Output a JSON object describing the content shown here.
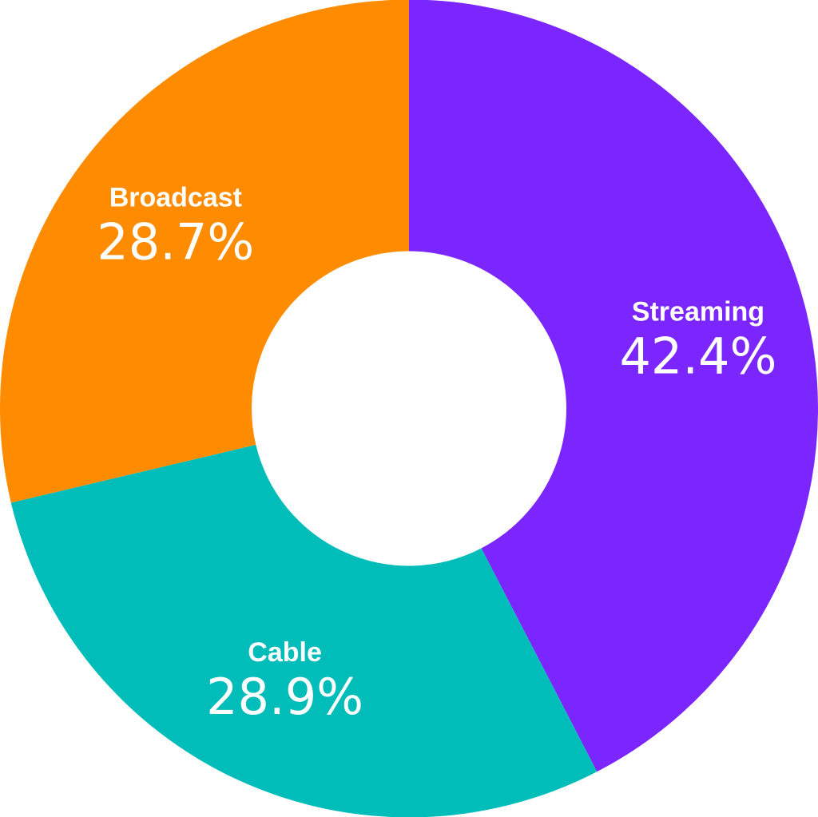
{
  "chart_data": {
    "type": "pie",
    "variant": "donut",
    "title": "",
    "slices": [
      {
        "label": "Streaming",
        "value": 42.4,
        "display": "42.4%",
        "color": "#7B26FF"
      },
      {
        "label": "Cable",
        "value": 28.9,
        "display": "28.9%",
        "color": "#00BDB9"
      },
      {
        "label": "Broadcast",
        "value": 28.7,
        "display": "28.7%",
        "color": "#FF8C00"
      }
    ],
    "start_angle": "top",
    "direction": "clockwise",
    "legend": "none",
    "labels": "inside-slices"
  }
}
